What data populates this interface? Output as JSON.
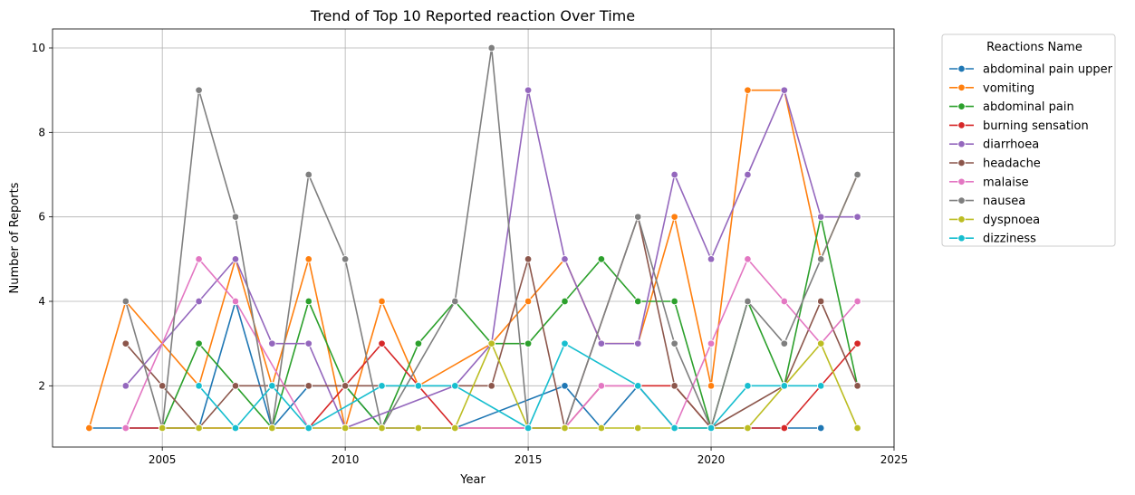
{
  "chart_data": {
    "type": "line",
    "title": "Trend of Top 10 Reported reaction Over Time",
    "xlabel": "Year",
    "ylabel": "Number of Reports",
    "xlim": [
      2002.0,
      2025.0
    ],
    "ylim": [
      0.55,
      10.45
    ],
    "xticks": [
      2005,
      2010,
      2015,
      2020,
      2025
    ],
    "yticks": [
      2,
      4,
      6,
      8,
      10
    ],
    "grid": true,
    "legend_title": "Reactions Name",
    "legend_position": "outside-upper-right",
    "series": [
      {
        "name": "abdominal pain upper",
        "color": "#1f77b4",
        "x": [
          2003,
          2004,
          2005,
          2006,
          2007,
          2008,
          2009,
          2010,
          2011,
          2012,
          2013,
          2016,
          2017,
          2018,
          2019,
          2020,
          2021,
          2022,
          2023
        ],
        "y": [
          1,
          1,
          1,
          1,
          4,
          1,
          2,
          2,
          1,
          1,
          1,
          2,
          1,
          2,
          1,
          1,
          1,
          1,
          1
        ]
      },
      {
        "name": "vomiting",
        "color": "#ff7f0e",
        "x": [
          2003,
          2004,
          2006,
          2007,
          2008,
          2009,
          2010,
          2011,
          2012,
          2014,
          2015,
          2016,
          2017,
          2018,
          2019,
          2020,
          2021,
          2022,
          2023,
          2024
        ],
        "y": [
          1,
          4,
          2,
          5,
          2,
          5,
          1,
          4,
          2,
          3,
          4,
          5,
          3,
          3,
          6,
          2,
          9,
          9,
          5,
          7
        ]
      },
      {
        "name": "abdominal pain",
        "color": "#2ca02c",
        "x": [
          2005,
          2006,
          2007,
          2008,
          2009,
          2010,
          2011,
          2012,
          2013,
          2014,
          2015,
          2016,
          2017,
          2018,
          2019,
          2020,
          2021,
          2022,
          2023,
          2024
        ],
        "y": [
          1,
          3,
          2,
          1,
          4,
          2,
          1,
          3,
          4,
          3,
          3,
          4,
          5,
          4,
          4,
          1,
          4,
          2,
          6,
          2
        ]
      },
      {
        "name": "burning sensation",
        "color": "#d62728",
        "x": [
          2004,
          2005,
          2006,
          2007,
          2008,
          2009,
          2010,
          2011,
          2012,
          2013,
          2015,
          2016,
          2017,
          2018,
          2019,
          2020,
          2021,
          2022,
          2024
        ],
        "y": [
          1,
          1,
          1,
          1,
          1,
          1,
          2,
          3,
          2,
          1,
          1,
          1,
          2,
          2,
          2,
          1,
          1,
          1,
          3
        ]
      },
      {
        "name": "diarrhoea",
        "color": "#9467bd",
        "x": [
          2004,
          2006,
          2007,
          2008,
          2009,
          2010,
          2013,
          2014,
          2015,
          2016,
          2017,
          2018,
          2019,
          2020,
          2021,
          2022,
          2023,
          2024
        ],
        "y": [
          2,
          4,
          5,
          3,
          3,
          1,
          2,
          3,
          9,
          5,
          3,
          3,
          7,
          5,
          7,
          9,
          6,
          6
        ]
      },
      {
        "name": "headache",
        "color": "#8c564b",
        "x": [
          2004,
          2005,
          2006,
          2007,
          2008,
          2009,
          2010,
          2014,
          2015,
          2016,
          2018,
          2019,
          2020,
          2022,
          2023,
          2024
        ],
        "y": [
          3,
          2,
          1,
          2,
          2,
          2,
          2,
          2,
          5,
          1,
          6,
          2,
          1,
          2,
          4,
          2
        ]
      },
      {
        "name": "malaise",
        "color": "#e377c2",
        "x": [
          2004,
          2006,
          2007,
          2009,
          2010,
          2016,
          2017,
          2018,
          2019,
          2020,
          2021,
          2022,
          2023,
          2024
        ],
        "y": [
          1,
          5,
          4,
          1,
          1,
          1,
          2,
          2,
          1,
          3,
          5,
          4,
          3,
          4
        ]
      },
      {
        "name": "nausea",
        "color": "#7f7f7f",
        "x": [
          2004,
          2005,
          2006,
          2007,
          2008,
          2009,
          2010,
          2011,
          2013,
          2014,
          2015,
          2016,
          2018,
          2019,
          2020,
          2021,
          2022,
          2023,
          2024
        ],
        "y": [
          4,
          1,
          9,
          6,
          1,
          7,
          5,
          1,
          4,
          10,
          1,
          1,
          6,
          3,
          1,
          4,
          3,
          5,
          7
        ]
      },
      {
        "name": "dyspnoea",
        "color": "#bcbd22",
        "x": [
          2005,
          2006,
          2007,
          2008,
          2009,
          2010,
          2011,
          2012,
          2013,
          2014,
          2015,
          2016,
          2017,
          2018,
          2019,
          2020,
          2021,
          2022,
          2023,
          2024
        ],
        "y": [
          1,
          1,
          1,
          1,
          1,
          1,
          1,
          1,
          1,
          3,
          1,
          1,
          1,
          1,
          1,
          1,
          1,
          2,
          3,
          1
        ]
      },
      {
        "name": "dizziness",
        "color": "#17becf",
        "x": [
          2006,
          2007,
          2008,
          2009,
          2011,
          2012,
          2013,
          2015,
          2016,
          2018,
          2019,
          2020,
          2021,
          2022,
          2023
        ],
        "y": [
          2,
          1,
          2,
          1,
          2,
          2,
          2,
          1,
          3,
          2,
          1,
          1,
          2,
          2,
          2
        ]
      }
    ]
  }
}
